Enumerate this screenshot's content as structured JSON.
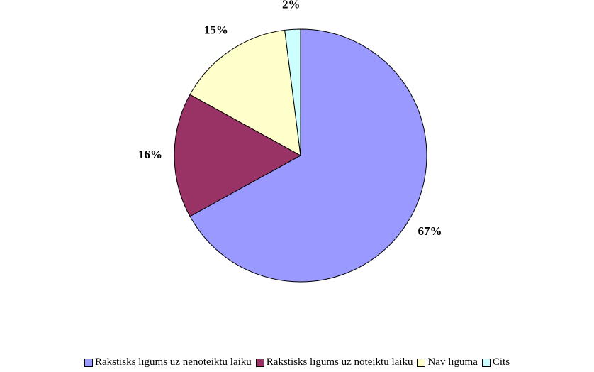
{
  "chart_data": {
    "type": "pie",
    "categories": [
      "Rakstisks līgums uz nenoteiktu laiku",
      "Rakstisks līgums uz noteiktu laiku",
      "Nav līguma",
      "Cits"
    ],
    "values": [
      67,
      16,
      15,
      2
    ],
    "value_labels": [
      "67%",
      "16%",
      "15%",
      "2%"
    ],
    "colors": [
      "#9999ff",
      "#993366",
      "#ffffcc",
      "#ccffff"
    ],
    "legend": "bottom"
  }
}
